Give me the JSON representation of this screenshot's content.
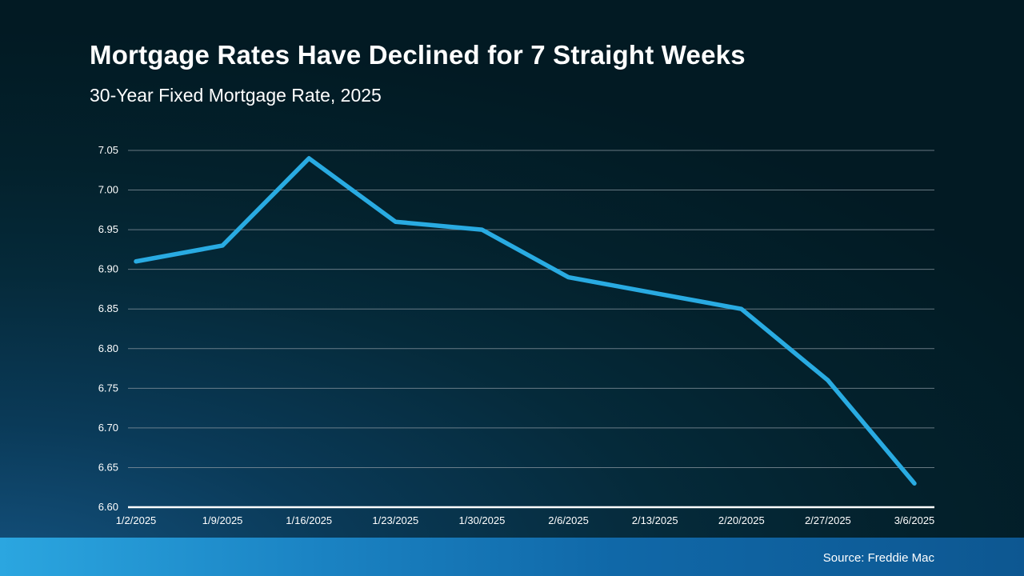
{
  "slide": {
    "title": "Mortgage Rates Have Declined for 7 Straight Weeks",
    "subtitle": "30-Year Fixed Mortgage Rate, 2025",
    "source": "Source: Freddie Mac"
  },
  "colors": {
    "line": "#29ABE2",
    "grid": "#8a97a0",
    "axis": "#ffffff",
    "text": "#ffffff"
  },
  "chart_data": {
    "type": "line",
    "title": "Mortgage Rates Have Declined for 7 Straight Weeks",
    "subtitle": "30-Year Fixed Mortgage Rate, 2025",
    "x": [
      "1/2/2025",
      "1/9/2025",
      "1/16/2025",
      "1/23/2025",
      "1/30/2025",
      "2/6/2025",
      "2/13/2025",
      "2/20/2025",
      "2/27/2025",
      "3/6/2025"
    ],
    "values": [
      6.91,
      6.93,
      7.04,
      6.96,
      6.95,
      6.89,
      6.87,
      6.85,
      6.76,
      6.63
    ],
    "series_name": "30-Year Fixed Mortgage Rate",
    "xlabel": "",
    "ylabel": "",
    "ylim": [
      6.6,
      7.05
    ],
    "ytick_step": 0.05,
    "yticks": [
      "7.05",
      "7.00",
      "6.95",
      "6.90",
      "6.85",
      "6.80",
      "6.75",
      "6.70",
      "6.65",
      "6.60"
    ],
    "grid": true,
    "legend": false,
    "source": "Source: Freddie Mac"
  }
}
